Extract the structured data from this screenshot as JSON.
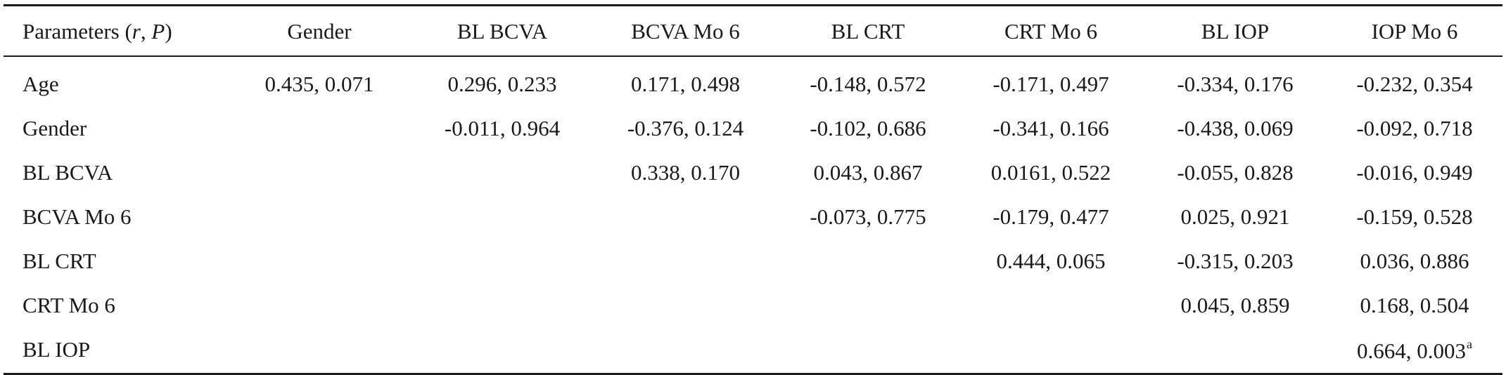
{
  "header": {
    "param_prefix": "Parameters (",
    "param_r": "r",
    "param_sep": ", ",
    "param_p": "P",
    "param_suffix": ")",
    "columns": [
      "Gender",
      "BL BCVA",
      "BCVA Mo 6",
      "BL CRT",
      "CRT Mo 6",
      "BL IOP",
      "IOP Mo 6"
    ]
  },
  "rows": [
    {
      "label": "Age",
      "cells": [
        "0.435, 0.071",
        "0.296, 0.233",
        "0.171, 0.498",
        "-0.148, 0.572",
        "-0.171, 0.497",
        "-0.334, 0.176",
        "-0.232, 0.354"
      ]
    },
    {
      "label": "Gender",
      "cells": [
        "",
        "-0.011, 0.964",
        "-0.376, 0.124",
        "-0.102, 0.686",
        "-0.341, 0.166",
        "-0.438, 0.069",
        "-0.092, 0.718"
      ]
    },
    {
      "label": "BL BCVA",
      "cells": [
        "",
        "",
        "0.338, 0.170",
        "0.043, 0.867",
        "0.0161, 0.522",
        "-0.055, 0.828",
        "-0.016, 0.949"
      ]
    },
    {
      "label": "BCVA Mo 6",
      "cells": [
        "",
        "",
        "",
        "-0.073, 0.775",
        "-0.179, 0.477",
        "0.025, 0.921",
        "-0.159, 0.528"
      ]
    },
    {
      "label": "BL CRT",
      "cells": [
        "",
        "",
        "",
        "",
        "0.444, 0.065",
        "-0.315, 0.203",
        "0.036, 0.886"
      ]
    },
    {
      "label": "CRT Mo 6",
      "cells": [
        "",
        "",
        "",
        "",
        "",
        "0.045, 0.859",
        "0.168, 0.504"
      ]
    },
    {
      "label": "BL IOP",
      "cells": [
        "",
        "",
        "",
        "",
        "",
        "",
        "0.664, 0.003"
      ],
      "note_mark": "a"
    }
  ]
}
